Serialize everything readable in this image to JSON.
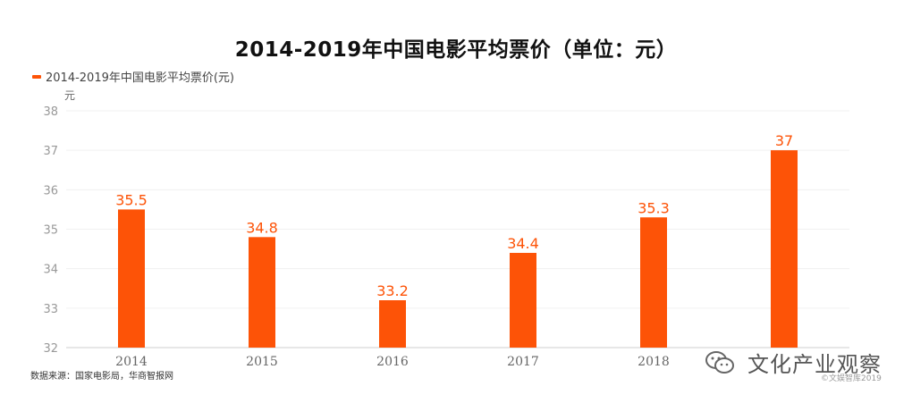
{
  "header": {
    "title": "2014-2019年中国电影平均票价（单位：元）"
  },
  "legend": {
    "label": "2014-2019年中国电影平均票价(元)",
    "color": "#fd5307",
    "placement": "top-left"
  },
  "unit_label": "元",
  "source": "数据来源：国家电影局，华商智报网",
  "watermark": {
    "text": "文化产业观察",
    "icon": "wechat-icon"
  },
  "credit": "©文娱智库2019",
  "chart_data": {
    "type": "bar",
    "title": "2014-2019年中国电影平均票价（单位：元）",
    "xlabel": "",
    "ylabel": "元",
    "categories": [
      "2014",
      "2015",
      "2016",
      "2017",
      "2018",
      ""
    ],
    "series": [
      {
        "name": "2014-2019年中国电影平均票价(元)",
        "values": [
          35.5,
          34.8,
          33.2,
          34.4,
          35.3,
          37
        ]
      }
    ],
    "value_labels": [
      "35.5",
      "34.8",
      "33.2",
      "34.4",
      "35.3",
      "37"
    ],
    "ylim": [
      32,
      38
    ],
    "yticks": [
      32,
      33,
      34,
      35,
      36,
      37,
      38
    ],
    "grid": true,
    "bar_color": "#fd5307"
  }
}
